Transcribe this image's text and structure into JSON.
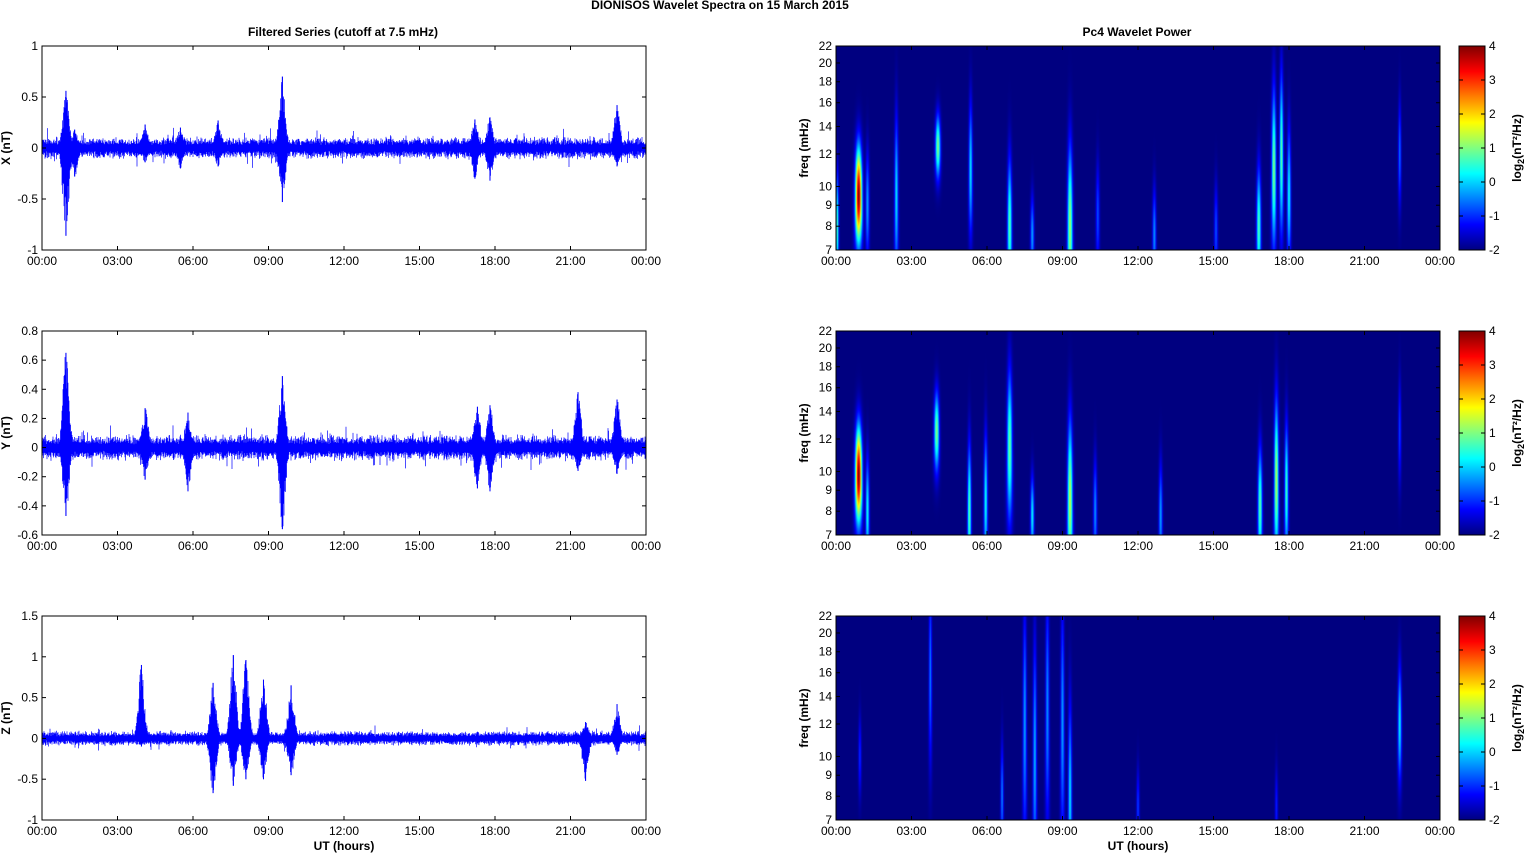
{
  "figure": {
    "title": "DIONISOS Wavelet Spectra on 15 March     2015",
    "left_title": "Filtered Series (cutoff at 7.5 mHz)",
    "right_title": "Pc4 Wavelet Power",
    "xlabel": "UT (hours)"
  },
  "chart_data": [
    {
      "type": "line",
      "id": "x",
      "title": "Filtered Series (cutoff at 7.5 mHz)",
      "ylabel": "X (nT)",
      "xlabel": "",
      "x_ticks": [
        "00:00",
        "03:00",
        "06:00",
        "09:00",
        "12:00",
        "15:00",
        "18:00",
        "21:00",
        "00:00"
      ],
      "xlim_hours": [
        0,
        24
      ],
      "ylim": [
        -1,
        1
      ],
      "y_ticks": [
        1,
        0.5,
        0,
        -0.5,
        -1
      ],
      "color": "#0000ff",
      "noise_amp": 0.06,
      "bursts": [
        {
          "t": 0.95,
          "max": 0.56,
          "min": -0.86
        },
        {
          "t": 1.3,
          "max": 0.18,
          "min": -0.28
        },
        {
          "t": 4.1,
          "max": 0.23,
          "min": -0.14
        },
        {
          "t": 5.5,
          "max": 0.2,
          "min": -0.2
        },
        {
          "t": 7.0,
          "max": 0.27,
          "min": -0.18
        },
        {
          "t": 9.55,
          "max": 0.7,
          "min": -0.53
        },
        {
          "t": 17.2,
          "max": 0.28,
          "min": -0.3
        },
        {
          "t": 17.8,
          "max": 0.3,
          "min": -0.32
        },
        {
          "t": 22.85,
          "max": 0.42,
          "min": -0.18
        }
      ]
    },
    {
      "type": "line",
      "id": "y",
      "title": "",
      "ylabel": "Y (nT)",
      "xlabel": "",
      "x_ticks": [
        "00:00",
        "03:00",
        "06:00",
        "09:00",
        "12:00",
        "15:00",
        "18:00",
        "21:00",
        "00:00"
      ],
      "xlim_hours": [
        0,
        24
      ],
      "ylim": [
        -0.6,
        0.8
      ],
      "y_ticks": [
        0.8,
        0.6,
        0.4,
        0.2,
        0,
        -0.2,
        -0.4,
        -0.6
      ],
      "color": "#0000ff",
      "noise_amp": 0.05,
      "bursts": [
        {
          "t": 0.95,
          "max": 0.65,
          "min": -0.47
        },
        {
          "t": 4.1,
          "max": 0.27,
          "min": -0.22
        },
        {
          "t": 5.8,
          "max": 0.24,
          "min": -0.3
        },
        {
          "t": 9.55,
          "max": 0.49,
          "min": -0.56
        },
        {
          "t": 17.3,
          "max": 0.28,
          "min": -0.28
        },
        {
          "t": 17.8,
          "max": 0.29,
          "min": -0.3
        },
        {
          "t": 21.3,
          "max": 0.38,
          "min": -0.16
        },
        {
          "t": 22.85,
          "max": 0.33,
          "min": -0.18
        }
      ]
    },
    {
      "type": "line",
      "id": "z",
      "title": "",
      "ylabel": "Z (nT)",
      "xlabel": "UT (hours)",
      "x_ticks": [
        "00:00",
        "03:00",
        "06:00",
        "09:00",
        "12:00",
        "15:00",
        "18:00",
        "21:00",
        "00:00"
      ],
      "xlim_hours": [
        0,
        24
      ],
      "ylim": [
        -1,
        1.5
      ],
      "y_ticks": [
        1.5,
        1,
        0.5,
        0,
        -0.5,
        -1
      ],
      "color": "#0000ff",
      "noise_amp": 0.05,
      "bursts": [
        {
          "t": 3.95,
          "max": 0.9,
          "min": -0.1
        },
        {
          "t": 6.8,
          "max": 0.68,
          "min": -0.67
        },
        {
          "t": 7.6,
          "max": 1.02,
          "min": -0.58
        },
        {
          "t": 8.1,
          "max": 0.96,
          "min": -0.5
        },
        {
          "t": 8.8,
          "max": 0.72,
          "min": -0.5
        },
        {
          "t": 9.9,
          "max": 0.65,
          "min": -0.45
        },
        {
          "t": 21.6,
          "max": 0.2,
          "min": -0.52
        },
        {
          "t": 22.85,
          "max": 0.42,
          "min": -0.2
        }
      ]
    },
    {
      "type": "heatmap",
      "id": "px",
      "title": "Pc4 Wavelet Power",
      "ylabel": "freq (mHz)",
      "xlabel": "",
      "x_ticks": [
        "00:00",
        "03:00",
        "06:00",
        "09:00",
        "12:00",
        "15:00",
        "18:00",
        "21:00",
        "00:00"
      ],
      "y_ticks": [
        22,
        20,
        18,
        16,
        14,
        12,
        10,
        9,
        8,
        7
      ],
      "ylim_mHz": [
        7,
        22
      ],
      "y_scale": "log",
      "colorbar_label": "log2(nT²/Hz)",
      "clim": [
        -2,
        4
      ],
      "colorbar_ticks": [
        4,
        3,
        2,
        1,
        0,
        -1,
        -2
      ],
      "background_level": -2,
      "features": [
        {
          "t": 0.9,
          "w": 0.09,
          "fc": 9.5,
          "fw": 0.18,
          "p": 4.0
        },
        {
          "t": 0.05,
          "w": 0.04,
          "fc": 8.0,
          "fw": 0.2,
          "p": 0.6
        },
        {
          "t": 1.25,
          "w": 0.05,
          "fc": 9.0,
          "fw": 0.2,
          "p": -0.3
        },
        {
          "t": 2.4,
          "w": 0.05,
          "fc": 9.5,
          "fw": 0.3,
          "p": 0.1
        },
        {
          "t": 4.05,
          "w": 0.07,
          "fc": 12.5,
          "fw": 0.12,
          "p": 1.0
        },
        {
          "t": 5.35,
          "w": 0.05,
          "fc": 11.0,
          "fw": 0.25,
          "p": 0.1
        },
        {
          "t": 6.9,
          "w": 0.06,
          "fc": 8.0,
          "fw": 0.25,
          "p": 0.8
        },
        {
          "t": 7.8,
          "w": 0.05,
          "fc": 7.6,
          "fw": 0.15,
          "p": -0.3
        },
        {
          "t": 9.3,
          "w": 0.07,
          "fc": 8.0,
          "fw": 0.3,
          "p": 1.2
        },
        {
          "t": 10.4,
          "w": 0.05,
          "fc": 8.5,
          "fw": 0.2,
          "p": -0.8
        },
        {
          "t": 12.65,
          "w": 0.05,
          "fc": 7.6,
          "fw": 0.18,
          "p": -0.4
        },
        {
          "t": 15.1,
          "w": 0.05,
          "fc": 7.8,
          "fw": 0.18,
          "p": -0.8
        },
        {
          "t": 16.8,
          "w": 0.06,
          "fc": 8.0,
          "fw": 0.22,
          "p": 0.7
        },
        {
          "t": 17.4,
          "w": 0.06,
          "fc": 11.0,
          "fw": 0.3,
          "p": 1.0
        },
        {
          "t": 17.7,
          "w": 0.05,
          "fc": 12.0,
          "fw": 0.3,
          "p": 0.8
        },
        {
          "t": 18.0,
          "w": 0.05,
          "fc": 9.5,
          "fw": 0.25,
          "p": 0.3
        },
        {
          "t": 22.4,
          "w": 0.04,
          "fc": 12.0,
          "fw": 0.2,
          "p": -0.6
        }
      ]
    },
    {
      "type": "heatmap",
      "id": "py",
      "title": "",
      "ylabel": "freq (mHz)",
      "xlabel": "",
      "x_ticks": [
        "00:00",
        "03:00",
        "06:00",
        "09:00",
        "12:00",
        "15:00",
        "18:00",
        "21:00",
        "00:00"
      ],
      "y_ticks": [
        22,
        20,
        18,
        16,
        14,
        12,
        10,
        9,
        8,
        7
      ],
      "ylim_mHz": [
        7,
        22
      ],
      "y_scale": "log",
      "colorbar_label": "log2(nT²/Hz)",
      "clim": [
        -2,
        4
      ],
      "colorbar_ticks": [
        4,
        3,
        2,
        1,
        0,
        -1,
        -2
      ],
      "background_level": -2,
      "features": [
        {
          "t": 0.9,
          "w": 0.09,
          "fc": 9.8,
          "fw": 0.18,
          "p": 4.0
        },
        {
          "t": 1.25,
          "w": 0.05,
          "fc": 8.0,
          "fw": 0.2,
          "p": 0.3
        },
        {
          "t": 4.0,
          "w": 0.07,
          "fc": 12.5,
          "fw": 0.15,
          "p": 1.0
        },
        {
          "t": 5.3,
          "w": 0.05,
          "fc": 8.0,
          "fw": 0.25,
          "p": 0.8
        },
        {
          "t": 5.95,
          "w": 0.05,
          "fc": 8.5,
          "fw": 0.25,
          "p": 0.3
        },
        {
          "t": 6.9,
          "w": 0.07,
          "fc": 11.5,
          "fw": 0.28,
          "p": 0.9
        },
        {
          "t": 7.8,
          "w": 0.05,
          "fc": 7.8,
          "fw": 0.15,
          "p": 0.2
        },
        {
          "t": 9.3,
          "w": 0.07,
          "fc": 8.5,
          "fw": 0.3,
          "p": 1.4
        },
        {
          "t": 10.3,
          "w": 0.05,
          "fc": 8.0,
          "fw": 0.2,
          "p": -0.4
        },
        {
          "t": 12.9,
          "w": 0.05,
          "fc": 7.8,
          "fw": 0.2,
          "p": -0.3
        },
        {
          "t": 16.85,
          "w": 0.06,
          "fc": 8.2,
          "fw": 0.22,
          "p": 0.8
        },
        {
          "t": 17.5,
          "w": 0.06,
          "fc": 9.5,
          "fw": 0.3,
          "p": 1.3
        },
        {
          "t": 17.9,
          "w": 0.05,
          "fc": 9.0,
          "fw": 0.25,
          "p": 0.6
        },
        {
          "t": 22.4,
          "w": 0.04,
          "fc": 12.5,
          "fw": 0.2,
          "p": -0.9
        }
      ]
    },
    {
      "type": "heatmap",
      "id": "pz",
      "title": "",
      "ylabel": "freq (mHz)",
      "xlabel": "UT (hours)",
      "x_ticks": [
        "00:00",
        "03:00",
        "06:00",
        "09:00",
        "12:00",
        "15:00",
        "18:00",
        "21:00",
        "00:00"
      ],
      "y_ticks": [
        22,
        20,
        18,
        16,
        14,
        12,
        10,
        9,
        8,
        7
      ],
      "ylim_mHz": [
        7,
        22
      ],
      "y_scale": "log",
      "colorbar_label": "log2(nT²/Hz)",
      "clim": [
        -2,
        4
      ],
      "colorbar_ticks": [
        4,
        3,
        2,
        1,
        0,
        -1,
        -2
      ],
      "background_level": -2,
      "features": [
        {
          "t": 0.95,
          "w": 0.04,
          "fc": 10.0,
          "fw": 0.15,
          "p": -1.0
        },
        {
          "t": 3.75,
          "w": 0.04,
          "fc": 16.0,
          "fw": 0.35,
          "p": -0.5
        },
        {
          "t": 6.6,
          "w": 0.04,
          "fc": 8.0,
          "fw": 0.2,
          "p": -0.5
        },
        {
          "t": 7.5,
          "w": 0.05,
          "fc": 12.0,
          "fw": 0.45,
          "p": -0.3
        },
        {
          "t": 7.9,
          "w": 0.05,
          "fc": 10.0,
          "fw": 0.45,
          "p": -0.2
        },
        {
          "t": 8.4,
          "w": 0.05,
          "fc": 13.0,
          "fw": 0.45,
          "p": -0.4
        },
        {
          "t": 9.0,
          "w": 0.05,
          "fc": 12.0,
          "fw": 0.45,
          "p": -0.3
        },
        {
          "t": 9.3,
          "w": 0.05,
          "fc": 8.0,
          "fw": 0.35,
          "p": 0.1
        },
        {
          "t": 12.0,
          "w": 0.04,
          "fc": 7.5,
          "fw": 0.15,
          "p": -0.9
        },
        {
          "t": 17.5,
          "w": 0.04,
          "fc": 7.5,
          "fw": 0.15,
          "p": -1.1
        },
        {
          "t": 22.4,
          "w": 0.05,
          "fc": 12.0,
          "fw": 0.22,
          "p": 0.2
        }
      ]
    }
  ]
}
